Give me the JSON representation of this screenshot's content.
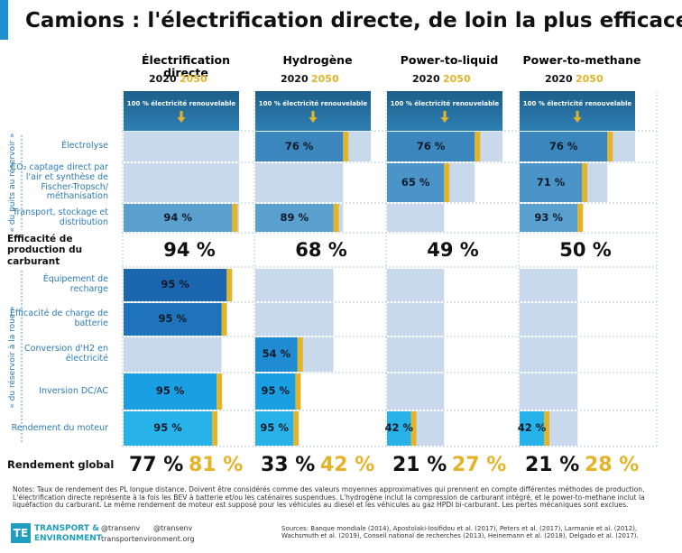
{
  "chart_data": {
    "type": "bar",
    "title": "Camions : l'électrification directe, de loin la plus efficace",
    "years": [
      "2020",
      "2050"
    ],
    "color_2050": "#e3b42a",
    "source_label": "100 % électricité renouvelable",
    "group_labels": [
      "« du puits au réservoir »",
      "« du réservoir à la roue »"
    ],
    "stages": [
      "Électrolyse",
      "CO₂ captage direct par l'air et synthèse de Fischer-Tropsch/ méthanisation",
      "Transport, stockage et distribution",
      "Équipement de recharge",
      "Efficacité de charge de batterie",
      "Conversion d'H2 en électricité",
      "Inversion DC/AC",
      "Rendement du moteur"
    ],
    "production_title": "Efficacité de production du carburant",
    "global_title": "Rendement global",
    "series": [
      {
        "name": "Électrification directe",
        "values": [
          null,
          null,
          94,
          95,
          95,
          null,
          95,
          95
        ],
        "value_labels": [
          null,
          null,
          "94 %",
          "95 %",
          "95 %",
          null,
          "95 %",
          "95 %"
        ],
        "production": 94,
        "production_label": "94 %",
        "global": [
          77,
          81
        ],
        "global_labels": [
          "77 %",
          "81 %"
        ]
      },
      {
        "name": "Hydrogène",
        "values": [
          76,
          null,
          89,
          null,
          null,
          54,
          95,
          95
        ],
        "value_labels": [
          "76 %",
          null,
          "89 %",
          null,
          null,
          "54 %",
          "95 %",
          "95 %"
        ],
        "production": 68,
        "production_label": "68 %",
        "global": [
          33,
          42
        ],
        "global_labels": [
          "33 %",
          "42 %"
        ]
      },
      {
        "name": "Power-to-liquid",
        "values": [
          76,
          65,
          null,
          null,
          null,
          null,
          null,
          42
        ],
        "value_labels": [
          "76 %",
          "65 %",
          null,
          null,
          null,
          null,
          null,
          "42 %"
        ],
        "production": 49,
        "production_label": "49 %",
        "global": [
          21,
          27
        ],
        "global_labels": [
          "21 %",
          "27 %"
        ]
      },
      {
        "name": "Power-to-methane",
        "values": [
          76,
          71,
          93,
          null,
          null,
          null,
          null,
          42
        ],
        "value_labels": [
          "76 %",
          "71 %",
          "93 %",
          null,
          null,
          null,
          null,
          "42 %"
        ],
        "production": 50,
        "production_label": "50 %",
        "global": [
          21,
          28
        ],
        "global_labels": [
          "21 %",
          "28 %"
        ]
      }
    ],
    "notes": "Notes: Taux de rendement des PL longue distance. Doivent être considérés comme des valeurs moyennes approximatives qui prennent en compte différentes méthodes de production. L'électrification directe représente à la fois les BEV à batterie et/ou les caténaires suspendues. L'hydrogène inclut la compression de carburant intégré, et le power-to-methane inclut la liquéfaction du carburant. Le même rendement de moteur est supposé pour les véhicules au diesel et les véhicules au gaz HPDI bi-carburant. Les pertes mécaniques sont exclues.",
    "sources": "Sources: Banque mondiale (2014), Apostolaki-Iosifidou et al. (2017), Peters et al. (2017), Larmanie et al. (2012), Wachsmuth et al. (2019), Conseil national de recherches (2013), Heinemann et al. (2018), Delgado et al. (2017).",
    "logo": [
      "TRANSPORT &",
      "ENVIRONMENT"
    ],
    "social": [
      "@transenv",
      "@transenv",
      "transportenvironment.org"
    ]
  }
}
